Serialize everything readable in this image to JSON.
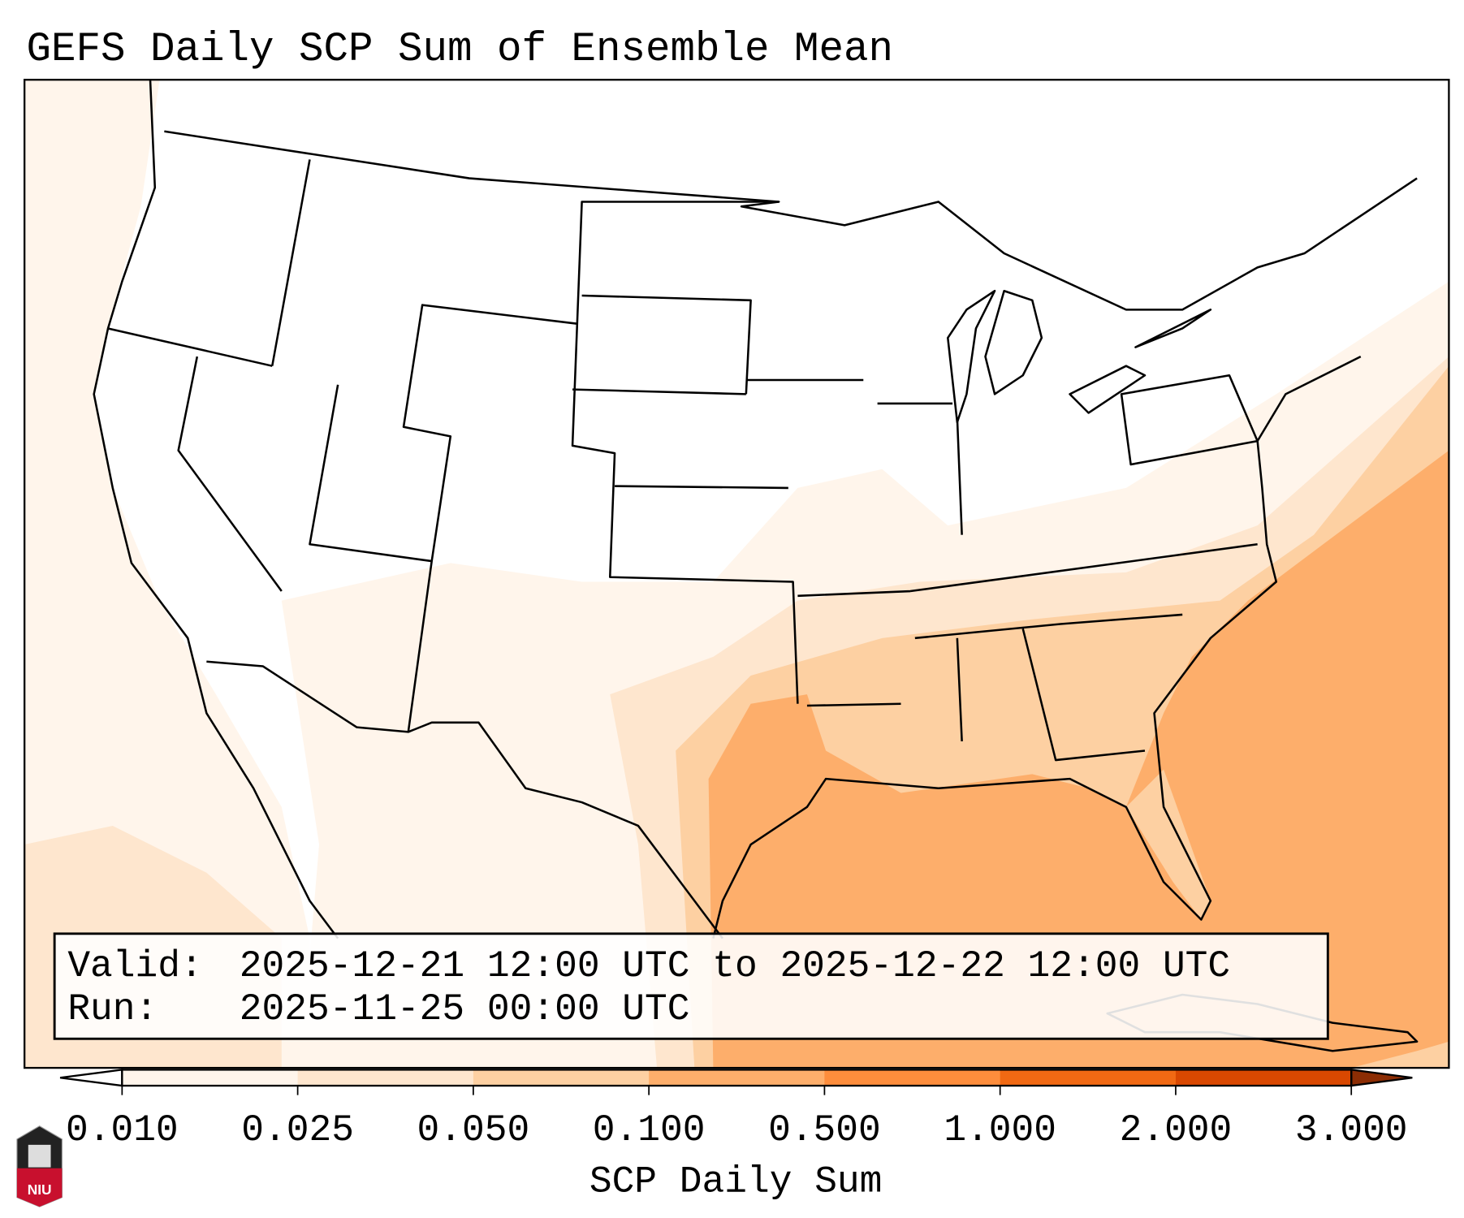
{
  "title": "GEFS Daily SCP Sum of Ensemble Mean",
  "info_box": {
    "valid_label": "Valid:",
    "valid_value": "2025-12-21 12:00 UTC to 2025-12-22 12:00 UTC",
    "run_label": "Run:",
    "run_value": "2025-11-25 00:00 UTC"
  },
  "colorbar": {
    "label": "SCP Daily Sum",
    "ticks": [
      "0.010",
      "0.025",
      "0.050",
      "0.100",
      "0.500",
      "1.000",
      "2.000",
      "3.000"
    ],
    "under_color": "#ffffff",
    "colors": [
      "#fff5eb",
      "#fee6ce",
      "#fdd0a2",
      "#fdae6b",
      "#fd8d3c",
      "#f16913",
      "#d94801"
    ],
    "over_color": "#8c2d04"
  },
  "logo": {
    "text": "NIU"
  }
}
